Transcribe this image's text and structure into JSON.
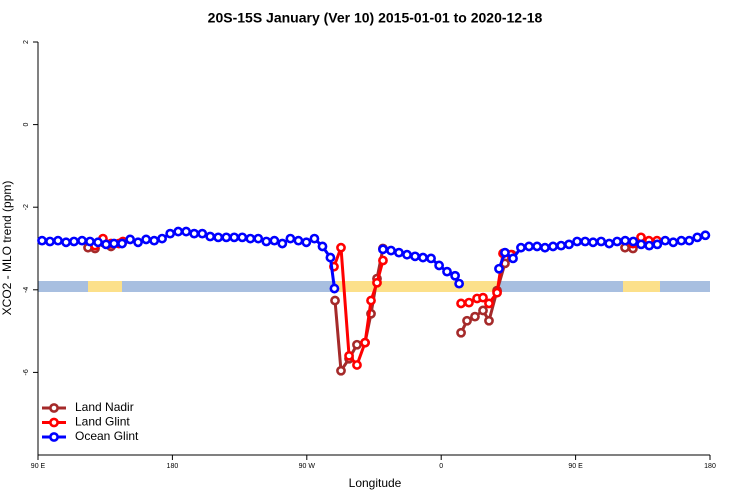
{
  "chart_data": {
    "type": "line",
    "title": "20S-15S January (Ver 10)   2015-01-01 to 2020-12-18",
    "x_label": "Longitude",
    "y_label": "XCO2 - MLO trend (ppm)",
    "xlim": [
      90,
      540
    ],
    "ylim": [
      -8,
      2
    ],
    "xticks": [
      {
        "value": 90,
        "label": "90 E"
      },
      {
        "value": 180,
        "label": "180"
      },
      {
        "value": 270,
        "label": "90 W"
      },
      {
        "value": 360,
        "label": "0"
      },
      {
        "value": 450,
        "label": "90 E"
      },
      {
        "value": 540,
        "label": "180"
      }
    ],
    "yticks": [
      2,
      0,
      -2,
      -4,
      -6
    ],
    "legend": "bottom-left",
    "series": [
      {
        "name": "Land Nadir",
        "color": "#a52a2a",
        "x": [
          123.5,
          128.2,
          133.5,
          138.9,
          null,
          288.9,
          292.9,
          298.3,
          303.6,
          309.0,
          313.0,
          317.0,
          321.0,
          null,
          373.3,
          377.3,
          382.6,
          388.0,
          392.0,
          397.4,
          402.7,
          407.4,
          null,
          483.1,
          488.4
        ],
        "values": [
          -2.98,
          -3.0,
          -2.85,
          -2.95,
          null,
          -4.26,
          -5.96,
          -5.67,
          -5.33,
          -5.28,
          -4.58,
          -3.73,
          -3.0,
          null,
          -5.04,
          -4.75,
          -4.65,
          -4.5,
          -4.75,
          -4.02,
          -3.36,
          -3.15,
          null,
          -2.98,
          -3.0
        ]
      },
      {
        "name": "Land Glint",
        "color": "#ff0000",
        "x": [
          128.2,
          133.5,
          138.9,
          144.2,
          146.9,
          null,
          288.2,
          292.9,
          298.3,
          303.6,
          309.0,
          313.0,
          317.0,
          321.0,
          null,
          373.3,
          378.6,
          384.0,
          388.0,
          392.0,
          397.4,
          401.4,
          406.7,
          null,
          488.4,
          493.8,
          499.1,
          504.5
        ],
        "values": [
          -2.93,
          -2.76,
          -2.88,
          -2.88,
          -2.83,
          null,
          -3.44,
          -2.98,
          -5.6,
          -5.82,
          -5.28,
          -4.26,
          -3.83,
          -3.29,
          null,
          -4.33,
          -4.31,
          -4.21,
          -4.19,
          -4.33,
          -4.07,
          -3.12,
          -3.15,
          null,
          -2.88,
          -2.73,
          -2.81,
          -2.81
        ]
      },
      {
        "name": "Ocean Glint",
        "color": "#0000ff",
        "x": [
          92.7,
          98.0,
          103.4,
          108.8,
          114.1,
          119.5,
          124.8,
          130.2,
          135.6,
          140.9,
          146.3,
          151.7,
          157.0,
          162.4,
          167.8,
          173.1,
          178.5,
          183.9,
          189.2,
          194.6,
          200.0,
          205.3,
          210.7,
          216.1,
          221.4,
          226.8,
          232.2,
          237.5,
          242.9,
          248.3,
          253.6,
          259.0,
          264.4,
          269.7,
          275.1,
          280.5,
          285.8,
          288.5,
          null,
          321.0,
          326.4,
          331.7,
          337.1,
          342.5,
          347.8,
          353.2,
          358.6,
          363.9,
          369.3,
          372.0,
          null,
          398.7,
          402.7,
          408.1,
          413.4,
          418.8,
          424.2,
          429.5,
          434.9,
          440.3,
          445.6,
          451.0,
          456.4,
          461.7,
          467.1,
          472.5,
          477.8,
          483.2,
          488.6,
          493.9,
          499.3,
          504.7,
          510.0,
          515.4,
          520.8,
          526.1,
          531.5,
          536.9
        ],
        "values": [
          -2.81,
          -2.83,
          -2.81,
          -2.85,
          -2.83,
          -2.81,
          -2.83,
          -2.85,
          -2.9,
          -2.88,
          -2.88,
          -2.78,
          -2.85,
          -2.78,
          -2.81,
          -2.76,
          -2.64,
          -2.59,
          -2.59,
          -2.64,
          -2.64,
          -2.71,
          -2.73,
          -2.73,
          -2.73,
          -2.73,
          -2.76,
          -2.76,
          -2.83,
          -2.81,
          -2.88,
          -2.76,
          -2.81,
          -2.85,
          -2.76,
          -2.95,
          -3.22,
          -3.97,
          null,
          -3.02,
          -3.05,
          -3.1,
          -3.15,
          -3.19,
          -3.22,
          -3.24,
          -3.41,
          -3.56,
          -3.66,
          -3.85,
          null,
          -3.49,
          -3.1,
          -3.24,
          -2.98,
          -2.95,
          -2.95,
          -2.98,
          -2.95,
          -2.93,
          -2.9,
          -2.83,
          -2.83,
          -2.85,
          -2.83,
          -2.88,
          -2.83,
          -2.81,
          -2.83,
          -2.9,
          -2.93,
          -2.9,
          -2.81,
          -2.85,
          -2.81,
          -2.81,
          -2.73,
          -2.68
        ]
      }
    ]
  }
}
